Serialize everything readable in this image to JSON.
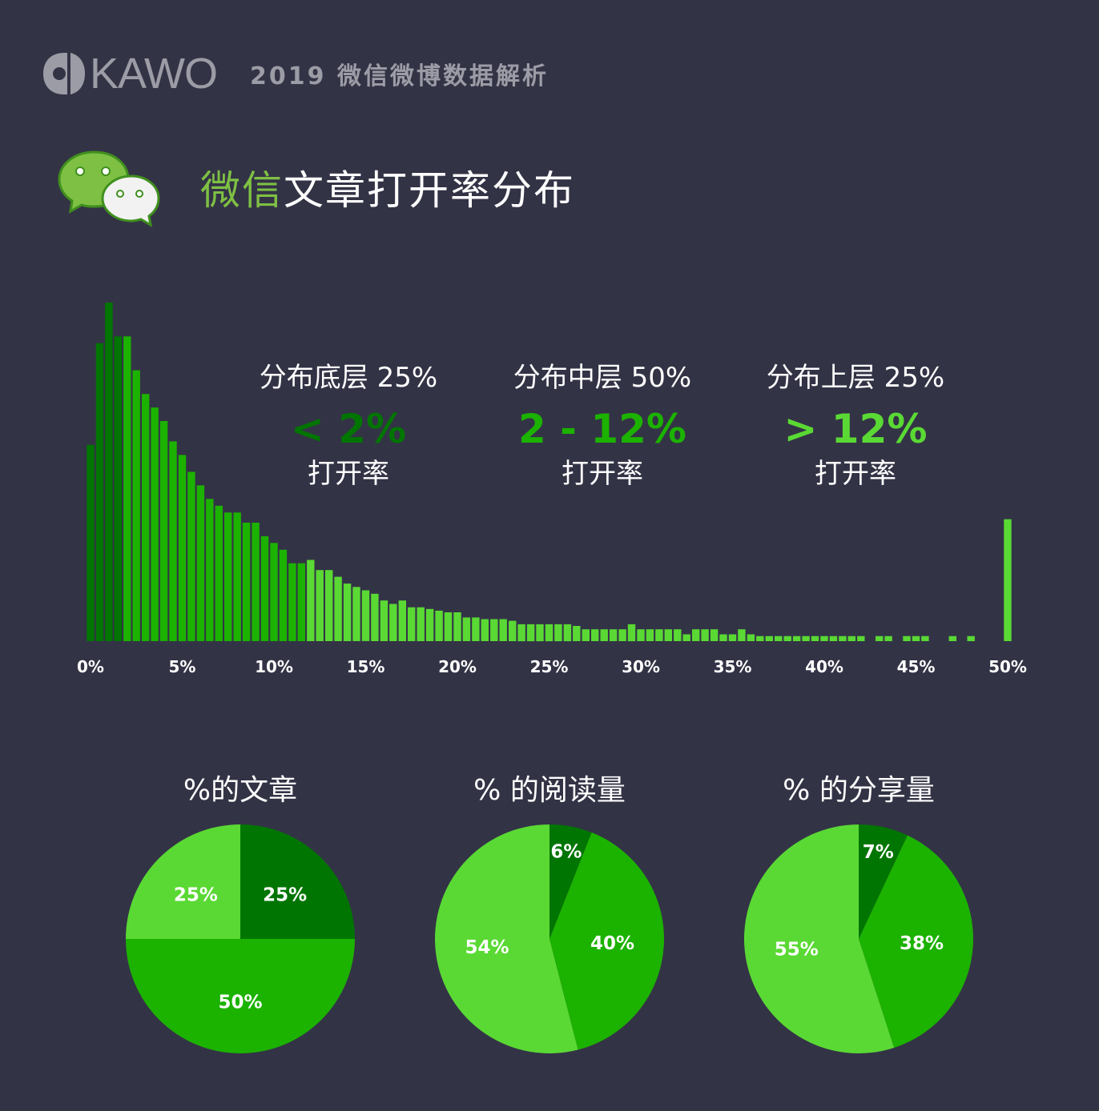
{
  "brand": {
    "logo_text": "KAWO",
    "report_title": "2019 微信微博数据解析"
  },
  "section": {
    "title_accent": "微信",
    "title_rest": "文章打开率分布"
  },
  "colors": {
    "background": "#333346",
    "dark_green": "#017501",
    "mid_green": "#1cb200",
    "light_green": "#5ad934",
    "accent_green": "#7ec043",
    "muted_text": "#9c9ca6"
  },
  "tiers": [
    {
      "label": "分布底层 25%",
      "range": "< 2%",
      "unit": "打开率",
      "color": "#017501"
    },
    {
      "label": "分布中层 50%",
      "range": "2 - 12%",
      "unit": "打开率",
      "color": "#1cb200"
    },
    {
      "label": "分布上层 25%",
      "range": "> 12%",
      "unit": "打开率",
      "color": "#5ad934"
    }
  ],
  "chart_data": [
    {
      "type": "bar",
      "title": "",
      "xlabel": "",
      "ylabel": "",
      "x_unit": "open rate %",
      "bin_width": 0.5,
      "xlim": [
        0,
        50
      ],
      "x_ticks": [
        "0%",
        "5%",
        "10%",
        "15%",
        "20%",
        "25%",
        "30%",
        "35%",
        "40%",
        "45%",
        "50%"
      ],
      "y_axis_shown": false,
      "grid": false,
      "note_values": "relative frequency, 100 = tallest bin",
      "x": [
        0.0,
        0.5,
        1.0,
        1.5,
        2.0,
        2.5,
        3.0,
        3.5,
        4.0,
        4.5,
        5.0,
        5.5,
        6.0,
        6.5,
        7.0,
        7.5,
        8.0,
        8.5,
        9.0,
        9.5,
        10.0,
        10.5,
        11.0,
        11.5,
        12.0,
        12.5,
        13.0,
        13.5,
        14.0,
        14.5,
        15.0,
        15.5,
        16.0,
        16.5,
        17.0,
        17.5,
        18.0,
        18.5,
        19.0,
        19.5,
        20.0,
        20.5,
        21.0,
        21.5,
        22.0,
        22.5,
        23.0,
        23.5,
        24.0,
        24.5,
        25.0,
        25.5,
        26.0,
        26.5,
        27.0,
        27.5,
        28.0,
        28.5,
        29.0,
        29.5,
        30.0,
        30.5,
        31.0,
        31.5,
        32.0,
        32.5,
        33.0,
        33.5,
        34.0,
        34.5,
        35.0,
        35.5,
        36.0,
        36.5,
        37.0,
        37.5,
        38.0,
        38.5,
        39.0,
        39.5,
        40.0,
        40.5,
        41.0,
        41.5,
        42.0,
        42.5,
        43.0,
        43.5,
        44.0,
        44.5,
        45.0,
        45.5,
        46.0,
        46.5,
        47.0,
        47.5,
        48.0,
        48.5,
        49.0,
        49.5,
        50.0
      ],
      "values": [
        58,
        88,
        100,
        90,
        90,
        80,
        73,
        69,
        65,
        59,
        55,
        50,
        46,
        42,
        40,
        38,
        38,
        35,
        35,
        31,
        29,
        27,
        23,
        23,
        24,
        21,
        21,
        19,
        17,
        16,
        15,
        14,
        12,
        11,
        12,
        10,
        10,
        9.5,
        9,
        8.5,
        8.5,
        7,
        7,
        6.5,
        6.5,
        6.5,
        6,
        5,
        5,
        5,
        5,
        5,
        5,
        4.5,
        3.5,
        3.5,
        3.5,
        3.5,
        3.5,
        5,
        3.5,
        3.5,
        3.5,
        3.5,
        3.5,
        2,
        3.5,
        3.5,
        3.5,
        2,
        2,
        3.5,
        2,
        1.5,
        1.5,
        1.5,
        1.5,
        1.5,
        1.5,
        1.5,
        1.5,
        1.5,
        1.5,
        1.5,
        1.5,
        0,
        1.5,
        1.5,
        0,
        1.5,
        1.5,
        1.5,
        0,
        0,
        1.5,
        0,
        1.5,
        0,
        0,
        0,
        36
      ],
      "series_colors_by_range": [
        {
          "from": 0,
          "to": 2,
          "color": "#017501"
        },
        {
          "from": 2,
          "to": 12,
          "color": "#1cb200"
        },
        {
          "from": 12,
          "to": 50,
          "color": "#5ad934"
        }
      ]
    },
    {
      "type": "pie",
      "title": "%的文章",
      "slices": [
        {
          "label": "25%",
          "value": 25,
          "color": "#017501"
        },
        {
          "label": "50%",
          "value": 50,
          "color": "#1cb200"
        },
        {
          "label": "25%",
          "value": 25,
          "color": "#5ad934"
        }
      ]
    },
    {
      "type": "pie",
      "title": "% 的阅读量",
      "slices": [
        {
          "label": "6%",
          "value": 6,
          "color": "#017501"
        },
        {
          "label": "40%",
          "value": 40,
          "color": "#1cb200"
        },
        {
          "label": "54%",
          "value": 54,
          "color": "#5ad934"
        }
      ]
    },
    {
      "type": "pie",
      "title": "% 的分享量",
      "slices": [
        {
          "label": "7%",
          "value": 7,
          "color": "#017501"
        },
        {
          "label": "38%",
          "value": 38,
          "color": "#1cb200"
        },
        {
          "label": "55%",
          "value": 55,
          "color": "#5ad934"
        }
      ]
    }
  ]
}
